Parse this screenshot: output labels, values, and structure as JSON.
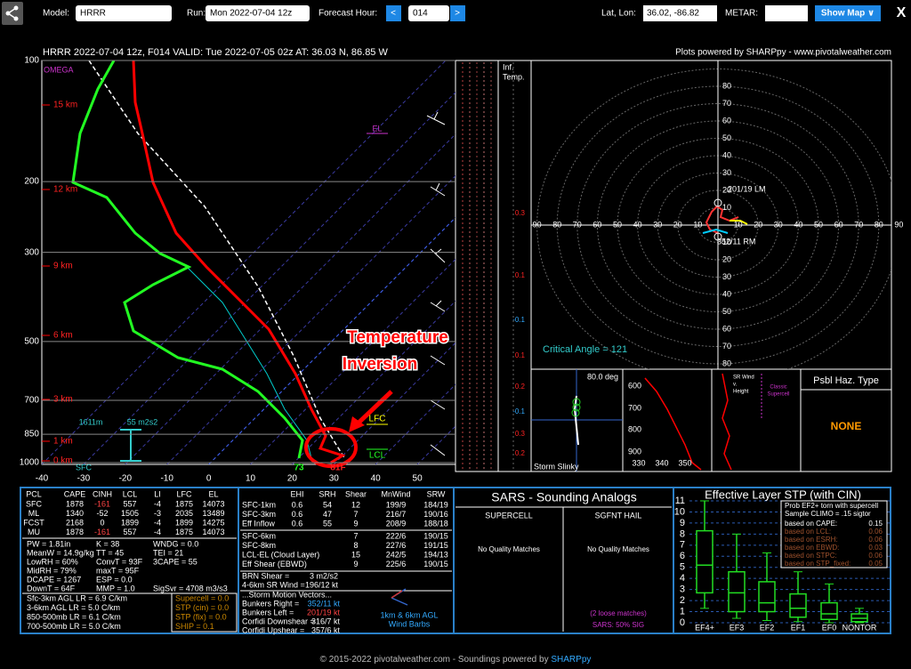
{
  "toolbar": {
    "model_label": "Model:",
    "model": "HRRR",
    "run_label": "Run:",
    "run": "Mon 2022-07-04 12z",
    "hour_label": "Forecast Hour:",
    "prev": "<",
    "hour": "014",
    "next": ">",
    "latlon_label": "Lat, Lon:",
    "latlon": "36.02, -86.82",
    "metar_label": "METAR:",
    "show_map": "Show Map ∨",
    "close": "X"
  },
  "header": {
    "title": "HRRR 2022-07-04 12z, F014  VALID: Tue 2022-07-05 02z  AT: 36.03 N, 86.85 W",
    "credit": "Plots powered by SHARPpy - www.pivotalweather.com"
  },
  "skewt": {
    "pressure_levels": [
      100,
      200,
      300,
      500,
      700,
      850,
      1000
    ],
    "heights": [
      "15 km",
      "12 km",
      "9 km",
      "6 km",
      "3 km",
      "1 km",
      "0 km"
    ],
    "temps": [
      -40,
      -30,
      -20,
      -10,
      0,
      10,
      20,
      30,
      40,
      50
    ],
    "omega": "OMEGA",
    "el": "EL",
    "lfc": "LFC",
    "lcl": "LCL",
    "eff_depth": "1611m",
    "eff_srh": "55 m2s2",
    "sfc": "SFC",
    "dewpoint": "73",
    "temperature": "81F",
    "annotation": [
      "Temperature",
      "Inversion"
    ]
  },
  "inflow": {
    "title": [
      "Inf.",
      "Temp."
    ],
    "omega_labels": [
      "0.3",
      "0.1",
      "-0.1",
      "0.1",
      "0.2",
      "-0.1",
      "0.3",
      "0.2"
    ]
  },
  "hodograph": {
    "rings": [
      10,
      20,
      30,
      40,
      50,
      60,
      70,
      80,
      90
    ],
    "left_motion": "201/19 LM",
    "right_motion": "352/11 RM",
    "critical_angle": "Critical Angle = 121"
  },
  "slinky": {
    "angle": "80.0 deg",
    "pressures": [
      600,
      700,
      800,
      900
    ],
    "theta": [
      330,
      340,
      350
    ],
    "title": "Storm Slinky"
  },
  "srwind": {
    "title": [
      "SR Wind",
      "v.",
      "Height"
    ],
    "note": [
      "Classic",
      "Supercell"
    ]
  },
  "hazard": {
    "title": "Psbl Haz. Type",
    "value": "NONE"
  },
  "parcel": {
    "header": [
      "PCL",
      "CAPE",
      "CINH",
      "LCL",
      "LI",
      "LFC",
      "EL"
    ],
    "rows": [
      [
        "SFC",
        "1878",
        "-161",
        "557",
        "-4",
        "1875",
        "14073"
      ],
      [
        "ML",
        "1340",
        "-52",
        "1505",
        "-3",
        "2035",
        "13489"
      ],
      [
        "FCST",
        "2168",
        "0",
        "1899",
        "-4",
        "1899",
        "14275"
      ],
      [
        "MU",
        "1878",
        "-161",
        "557",
        "-4",
        "1875",
        "14073"
      ]
    ],
    "indices": [
      [
        "PW = 1.81in",
        "K = 38",
        "WNDG = 0.0"
      ],
      [
        "MeanW = 14.9g/kg",
        "TT = 45",
        "TEI = 21"
      ],
      [
        "LowRH = 60%",
        "ConvT = 93F",
        "3CAPE = 55"
      ],
      [
        "MidRH = 79%",
        "maxT = 95F"
      ],
      [
        "DCAPE = 1267",
        "ESP = 0.0"
      ],
      [
        "DownT = 64F",
        "MMP = 1.0",
        "SigSvr = 4708 m3/s3"
      ]
    ],
    "lapse_rates": [
      "Sfc-3km AGL LR = 6.9 C/km",
      "3-6km AGL LR = 5.0 C/km",
      "850-500mb LR = 6.1 C/km",
      "700-500mb LR = 5.0 C/km"
    ],
    "params": [
      "Supercell = 0.0",
      "STP (cin) = 0.0",
      "STP (fix) = 0.0",
      "SHIP = 0.1"
    ]
  },
  "kinematics": {
    "header": [
      "EHI",
      "SRH",
      "Shear",
      "MnWind",
      "SRW"
    ],
    "rows": [
      [
        "SFC-1km",
        "0.6",
        "54",
        "12",
        "199/9",
        "184/19"
      ],
      [
        "SFC-3km",
        "0.6",
        "47",
        "7",
        "216/7",
        "190/16"
      ],
      [
        "Eff Inflow",
        "0.6",
        "55",
        "9",
        "208/9",
        "188/18"
      ]
    ],
    "shear_rows": [
      [
        "SFC-6km",
        "7",
        "222/6",
        "190/15"
      ],
      [
        "SFC-8km",
        "8",
        "227/6",
        "191/15"
      ],
      [
        "LCL-EL (Cloud Layer)",
        "15",
        "242/5",
        "194/13"
      ],
      [
        "Eff Shear (EBWD)",
        "9",
        "225/6",
        "190/15"
      ]
    ],
    "other": [
      [
        "BRN Shear =",
        "3 m2/s2"
      ],
      [
        "4-6km SR Wind =",
        "196/12 kt"
      ]
    ],
    "motion_title": "...Storm Motion Vectors...",
    "motions": [
      [
        "Bunkers Right =",
        "352/11 kt"
      ],
      [
        "Bunkers Left =",
        "201/19 kt"
      ],
      [
        "Corfidi Downshear =",
        "316/7 kt"
      ],
      [
        "Corfidi Upshear =",
        "357/6 kt"
      ]
    ],
    "barb_label": [
      "1km & 6km AGL",
      "Wind Barbs"
    ]
  },
  "sars": {
    "title": "SARS - Sounding Analogs",
    "supercell": "SUPERCELL",
    "hail": "SGFNT HAIL",
    "supercell_result": "No Quality Matches",
    "hail_result": "No Quality Matches",
    "loose": "(2 loose matches)",
    "sig": "SARS: 50% SIG"
  },
  "stp": {
    "title": "Effective Layer STP (with CIN)",
    "ylim": [
      0,
      11
    ],
    "yticks": [
      0,
      1,
      2,
      3,
      4,
      5,
      6,
      7,
      8,
      9,
      10,
      11
    ],
    "categories": [
      "EF4+",
      "EF3",
      "EF2",
      "EF1",
      "EF0",
      "NONTOR"
    ],
    "boxes": [
      {
        "min": 1.3,
        "q1": 2.7,
        "median": 5.2,
        "q3": 8.3,
        "max": 11
      },
      {
        "min": 0.4,
        "q1": 1,
        "median": 2.7,
        "q3": 4.6,
        "max": 8
      },
      {
        "min": 0.2,
        "q1": 1,
        "median": 1.8,
        "q3": 3.7,
        "max": 6.3
      },
      {
        "min": 0.1,
        "q1": 0.5,
        "median": 1.3,
        "q3": 2.6,
        "max": 4.6
      },
      {
        "min": 0,
        "q1": 0.3,
        "median": 0.8,
        "q3": 1.8,
        "max": 3.5
      },
      {
        "min": 0,
        "q1": 0.1,
        "median": 0.4,
        "q3": 0.8,
        "max": 1.3
      }
    ],
    "legend_title": [
      "Prob EF2+ torn with supercell",
      "Sample CLIMO = .15 sigtor"
    ],
    "legend": [
      [
        "based on CAPE:",
        "0.15"
      ],
      [
        "based on LCL:",
        "0.06"
      ],
      [
        "based on ESRH:",
        "0.06"
      ],
      [
        "based on EBWD:",
        "0.03"
      ],
      [
        "based on STPC:",
        "0.06"
      ],
      [
        "based on STP_fixed:",
        "0.05"
      ]
    ]
  },
  "footer": {
    "text": "© 2015-2022 pivotalweather.com - Soundings powered by ",
    "link": "SHARPpy"
  }
}
